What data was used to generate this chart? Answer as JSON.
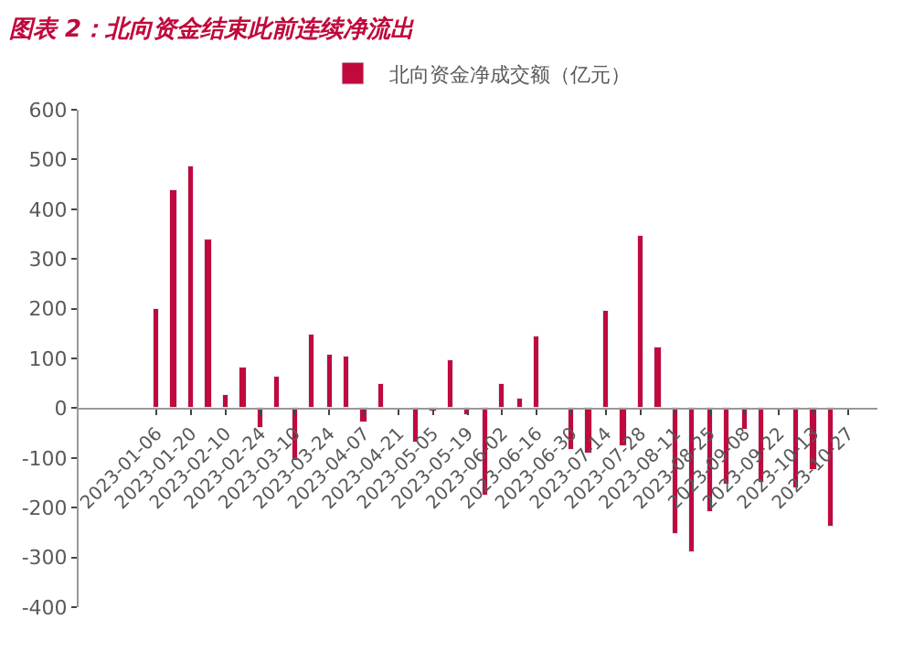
{
  "chart_data": {
    "type": "bar",
    "title": "图表 2：北向资金结束此前连续净流出",
    "categories": [
      "2023-01-06",
      null,
      "2023-01-20",
      null,
      "2023-02-10",
      null,
      "2023-02-24",
      null,
      "2023-03-10",
      null,
      "2023-03-24",
      null,
      "2023-04-07",
      null,
      "2023-04-21",
      null,
      "2023-05-05",
      null,
      "2023-05-19",
      null,
      "2023-06-02",
      null,
      "2023-06-16",
      null,
      "2023-06-30",
      null,
      "2023-07-14",
      null,
      "2023-07-28",
      null,
      "2023-08-11",
      null,
      "2023-08-25",
      null,
      "2023-09-08",
      null,
      "2023-09-22",
      null,
      "2023-10-13",
      null,
      "2023-10-27",
      null
    ],
    "series": [
      {
        "name": "北向资金净成交额（亿元）",
        "color": "#c0093c",
        "values": [
          200,
          440,
          485,
          340,
          28,
          80,
          -40,
          65,
          -105,
          148,
          108,
          105,
          -30,
          48,
          null,
          -68,
          -8,
          97,
          -15,
          -175,
          50,
          18,
          145,
          null,
          -85,
          -90,
          197,
          -75,
          345,
          123,
          -253,
          -290,
          -210,
          -155,
          -45,
          -150,
          null,
          -160,
          -125,
          -240,
          null,
          null
        ]
      }
    ],
    "ylim": [
      -400,
      600
    ],
    "yticks": [
      -400,
      -300,
      -200,
      -100,
      0,
      100,
      200,
      300,
      400,
      500,
      600
    ],
    "legend": "top"
  }
}
